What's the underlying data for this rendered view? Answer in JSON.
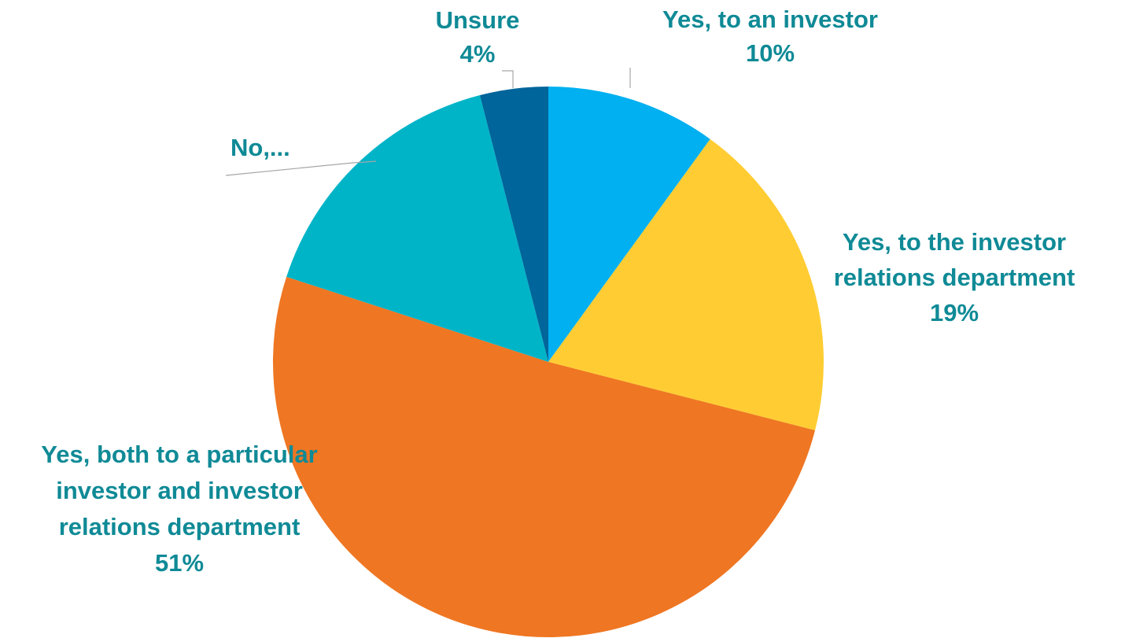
{
  "chart_data": {
    "type": "pie",
    "title": "",
    "label_color": "#0f8a96",
    "slices": [
      {
        "label": "Yes, to an investor",
        "percent_label": "10%",
        "value": 10,
        "color": "#00b0f0"
      },
      {
        "label": "Yes, to the investor relations department",
        "percent_label": "19%",
        "value": 19,
        "color": "#ffcd33"
      },
      {
        "label": "Yes, both to a particular investor and investor relations department",
        "percent_label": "51%",
        "value": 51,
        "color": "#ef7622"
      },
      {
        "label": "No,...",
        "percent_label": "",
        "value": 16,
        "color": "#00b4c8"
      },
      {
        "label": "Unsure",
        "percent_label": "4%",
        "value": 4,
        "color": "#00659a"
      }
    ]
  }
}
